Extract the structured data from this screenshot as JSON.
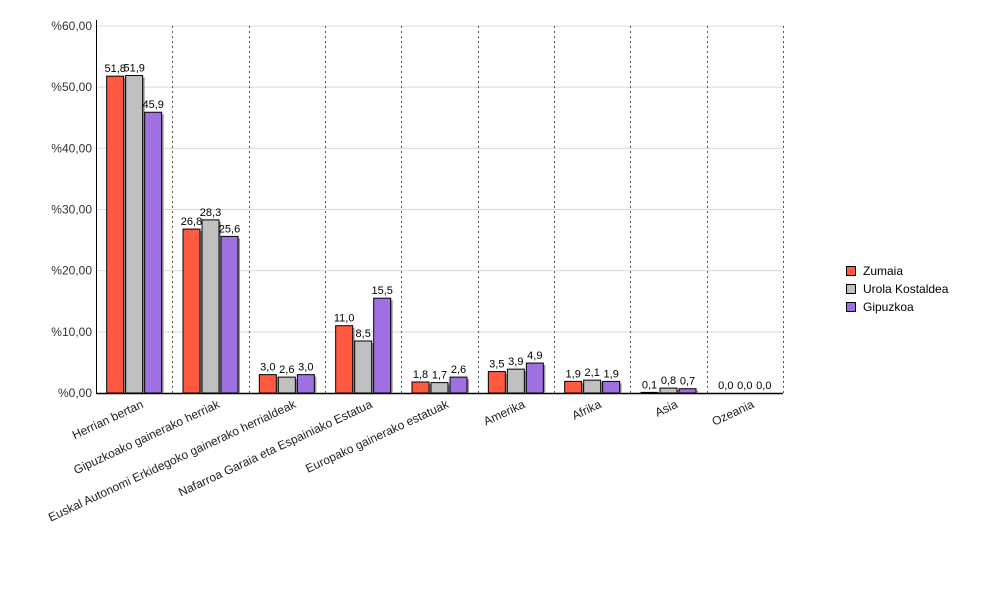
{
  "chart_data": {
    "type": "bar",
    "categories": [
      "Herrian bertan",
      "Gipuzkoako gainerako herriak",
      "Euskal Autonomi Erkidegoko gainerako herrialdeak",
      "Nafarroa Garaia eta Espainiako Estatua",
      "Europako gainerako estatuak",
      "Amerika",
      "Afrika",
      "Asia",
      "Ozeania"
    ],
    "series": [
      {
        "name": "Zumaia",
        "color": "#ff5a40",
        "values": [
          51.8,
          26.8,
          3.0,
          11.0,
          1.8,
          3.5,
          1.9,
          0.1,
          0.0
        ],
        "labels": [
          "51,8",
          "26,8",
          "3,0",
          "11,0",
          "1,8",
          "3,5",
          "1,9",
          "0,1",
          "0,0"
        ]
      },
      {
        "name": "Urola Kostaldea",
        "color": "#c0c0c0",
        "values": [
          51.9,
          28.3,
          2.6,
          8.5,
          1.7,
          3.9,
          2.1,
          0.8,
          0.0
        ],
        "labels": [
          "51,9",
          "28,3",
          "2,6",
          "8,5",
          "1,7",
          "3,9",
          "2,1",
          "0,8",
          "0,0"
        ]
      },
      {
        "name": "Gipuzkoa",
        "color": "#9f70e0",
        "values": [
          45.9,
          25.6,
          3.0,
          15.5,
          2.6,
          4.9,
          1.9,
          0.7,
          0.0
        ],
        "labels": [
          "45,9",
          "25,6",
          "3,0",
          "15,5",
          "2,6",
          "4,9",
          "1,9",
          "0,7",
          "0,0"
        ]
      }
    ],
    "y_ticks": [
      "%0,00",
      "%10,00",
      "%20,00",
      "%30,00",
      "%40,00",
      "%50,00",
      "%60,00"
    ],
    "ylim": [
      0,
      60
    ],
    "grid": true,
    "legend_position": "right"
  }
}
